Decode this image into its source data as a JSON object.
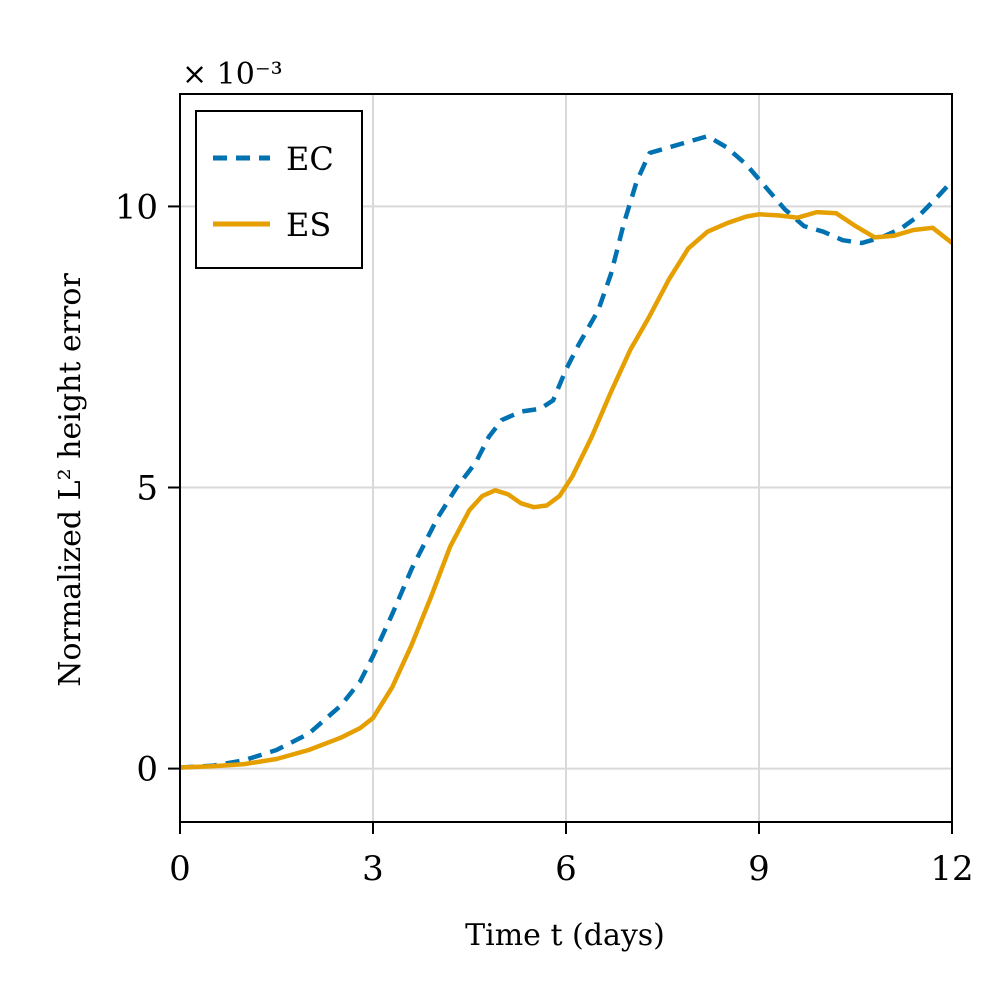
{
  "chart_data": {
    "type": "line",
    "xlabel": "Time t (days)",
    "ylabel": "Normalized L² height error",
    "y_scale_note": "× 10⁻³",
    "xlim": [
      0,
      12
    ],
    "ylim": [
      -0.95,
      12.0
    ],
    "x_ticks": [
      0,
      3,
      6,
      9,
      12
    ],
    "x_tick_labels": [
      "0",
      "3",
      "6",
      "9",
      "12"
    ],
    "y_ticks": [
      0,
      5,
      10
    ],
    "y_tick_labels": [
      "0",
      "5",
      "10"
    ],
    "grid": true,
    "legend_position": "top-left",
    "colors": {
      "EC": "#0072b2",
      "ES": "#e69f00"
    },
    "series": [
      {
        "name": "EC",
        "style": "dashed",
        "x": [
          0,
          0.5,
          1.0,
          1.5,
          2.0,
          2.5,
          2.8,
          3.0,
          3.3,
          3.6,
          4.0,
          4.3,
          4.6,
          4.8,
          5.0,
          5.3,
          5.6,
          5.8,
          6.0,
          6.2,
          6.5,
          6.7,
          6.9,
          7.1,
          7.3,
          7.6,
          7.9,
          8.2,
          8.5,
          8.8,
          9.1,
          9.4,
          9.7,
          10.0,
          10.3,
          10.6,
          10.9,
          11.2,
          11.5,
          11.8,
          12.0
        ],
        "values": [
          0.02,
          0.05,
          0.15,
          0.33,
          0.62,
          1.12,
          1.55,
          2.0,
          2.75,
          3.55,
          4.45,
          5.0,
          5.45,
          5.9,
          6.2,
          6.35,
          6.4,
          6.55,
          7.1,
          7.55,
          8.15,
          8.8,
          9.7,
          10.45,
          10.95,
          11.05,
          11.15,
          11.25,
          11.05,
          10.75,
          10.35,
          9.95,
          9.65,
          9.55,
          9.4,
          9.35,
          9.45,
          9.6,
          9.85,
          10.2,
          10.45
        ]
      },
      {
        "name": "ES",
        "style": "solid",
        "x": [
          0,
          0.5,
          1.0,
          1.5,
          2.0,
          2.5,
          2.8,
          3.0,
          3.3,
          3.6,
          3.9,
          4.2,
          4.5,
          4.7,
          4.9,
          5.1,
          5.3,
          5.5,
          5.7,
          5.9,
          6.1,
          6.4,
          6.7,
          7.0,
          7.3,
          7.6,
          7.9,
          8.2,
          8.5,
          8.8,
          9.0,
          9.3,
          9.6,
          9.9,
          10.2,
          10.5,
          10.8,
          11.1,
          11.4,
          11.7,
          12.0
        ],
        "values": [
          0.02,
          0.04,
          0.08,
          0.17,
          0.33,
          0.55,
          0.72,
          0.9,
          1.45,
          2.2,
          3.05,
          3.95,
          4.6,
          4.85,
          4.95,
          4.88,
          4.72,
          4.65,
          4.68,
          4.85,
          5.2,
          5.9,
          6.7,
          7.45,
          8.05,
          8.7,
          9.25,
          9.55,
          9.7,
          9.82,
          9.86,
          9.84,
          9.8,
          9.9,
          9.88,
          9.65,
          9.45,
          9.48,
          9.58,
          9.62,
          9.35
        ]
      }
    ]
  }
}
